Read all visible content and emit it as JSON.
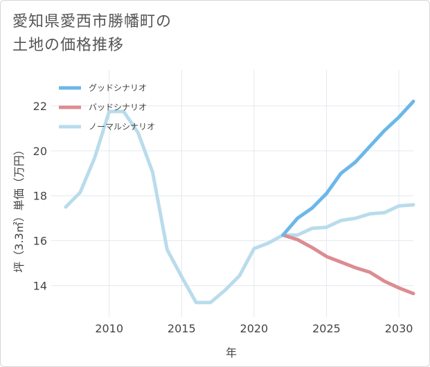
{
  "title_line1": "愛知県愛西市勝幡町の",
  "title_line2": "土地の価格推移",
  "chart_data": {
    "type": "line",
    "title": "愛知県愛西市勝幡町の土地の価格推移",
    "xlabel": "年",
    "ylabel": "坪（3.3㎡）単価（万円）",
    "xlim": [
      2006,
      2031
    ],
    "ylim": [
      12.6,
      23.6
    ],
    "xticks": [
      2010,
      2015,
      2020,
      2025,
      2030
    ],
    "yticks": [
      14,
      16,
      18,
      20,
      22
    ],
    "series": [
      {
        "name": "グッドシナリオ",
        "color": "#6bb8e8",
        "x": [
          2022,
          2023,
          2024,
          2025,
          2026,
          2027,
          2028,
          2029,
          2030,
          2031
        ],
        "y": [
          16.25,
          17.0,
          17.45,
          18.1,
          19.0,
          19.5,
          20.2,
          20.9,
          21.5,
          22.2
        ]
      },
      {
        "name": "バッドシナリオ",
        "color": "#dc8c92",
        "x": [
          2022,
          2023,
          2024,
          2025,
          2026,
          2027,
          2028,
          2029,
          2030,
          2031
        ],
        "y": [
          16.25,
          16.05,
          15.7,
          15.3,
          15.05,
          14.8,
          14.6,
          14.2,
          13.9,
          13.65
        ]
      },
      {
        "name": "ノーマルシナリオ",
        "color": "#b9dcec",
        "x": [
          2007,
          2008,
          2009,
          2010,
          2011,
          2012,
          2013,
          2014,
          2015,
          2016,
          2017,
          2018,
          2019,
          2020,
          2021,
          2022,
          2023,
          2024,
          2025,
          2026,
          2027,
          2028,
          2029,
          2030,
          2031
        ],
        "y": [
          17.5,
          18.15,
          19.7,
          21.75,
          21.75,
          20.8,
          19.05,
          15.6,
          14.4,
          13.25,
          13.25,
          13.8,
          14.45,
          15.65,
          15.9,
          16.25,
          16.25,
          16.55,
          16.6,
          16.9,
          17.0,
          17.2,
          17.25,
          17.55,
          17.6
        ]
      }
    ]
  }
}
